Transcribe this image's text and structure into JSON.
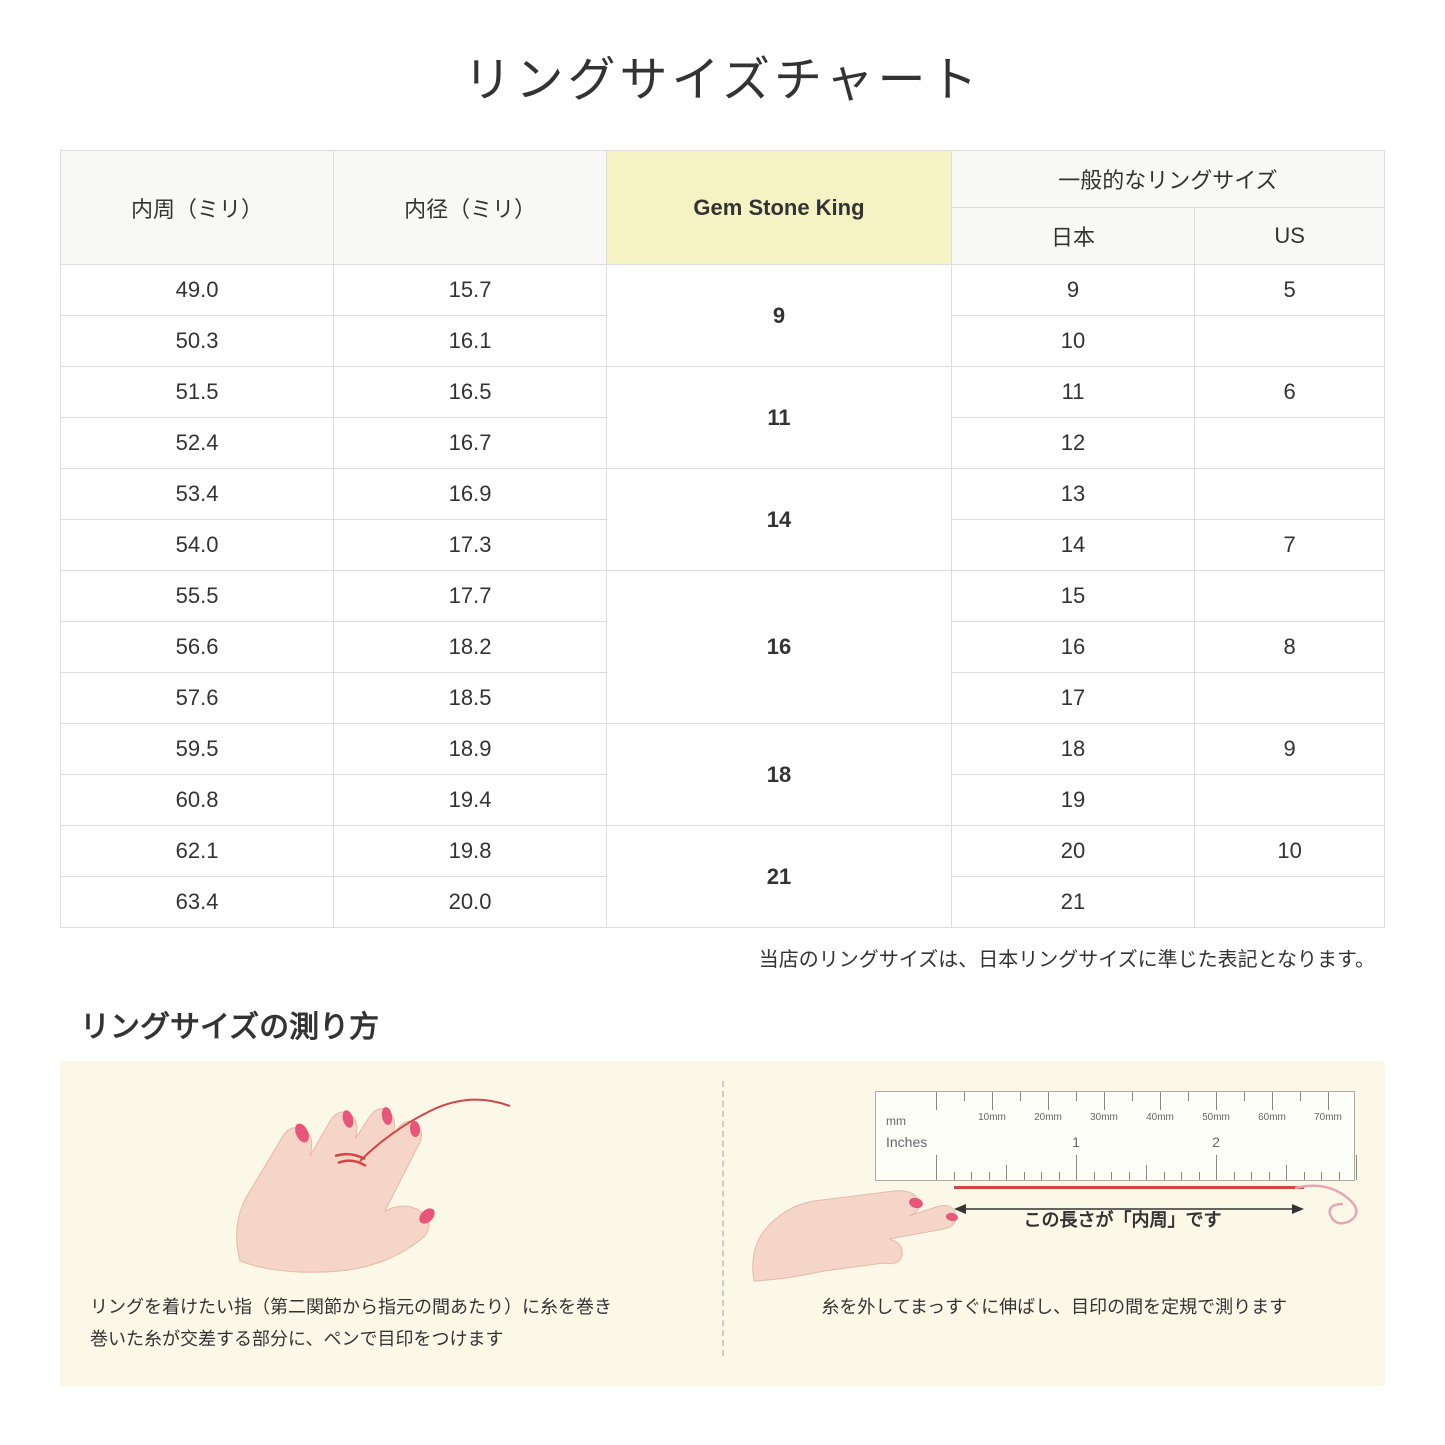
{
  "title": "リングサイズチャート",
  "headers": {
    "circumference": "内周（ミリ）",
    "diameter": "内径（ミリ）",
    "gemstone": "Gem Stone King",
    "general": "一般的なリングサイズ",
    "japan": "日本",
    "us": "US"
  },
  "rows": [
    {
      "circ": "49.0",
      "diam": "15.7",
      "gsk": "9",
      "gskSpan": 2,
      "jp": "9",
      "us": "5"
    },
    {
      "circ": "50.3",
      "diam": "16.1",
      "gsk": "",
      "gskSpan": 0,
      "jp": "10",
      "us": ""
    },
    {
      "circ": "51.5",
      "diam": "16.5",
      "gsk": "11",
      "gskSpan": 2,
      "jp": "11",
      "us": "6"
    },
    {
      "circ": "52.4",
      "diam": "16.7",
      "gsk": "",
      "gskSpan": 0,
      "jp": "12",
      "us": ""
    },
    {
      "circ": "53.4",
      "diam": "16.9",
      "gsk": "14",
      "gskSpan": 2,
      "jp": "13",
      "us": ""
    },
    {
      "circ": "54.0",
      "diam": "17.3",
      "gsk": "",
      "gskSpan": 0,
      "jp": "14",
      "us": "7"
    },
    {
      "circ": "55.5",
      "diam": "17.7",
      "gsk": "16",
      "gskSpan": 3,
      "jp": "15",
      "us": ""
    },
    {
      "circ": "56.6",
      "diam": "18.2",
      "gsk": "",
      "gskSpan": 0,
      "jp": "16",
      "us": "8"
    },
    {
      "circ": "57.6",
      "diam": "18.5",
      "gsk": "",
      "gskSpan": 0,
      "jp": "17",
      "us": ""
    },
    {
      "circ": "59.5",
      "diam": "18.9",
      "gsk": "18",
      "gskSpan": 2,
      "jp": "18",
      "us": "9"
    },
    {
      "circ": "60.8",
      "diam": "19.4",
      "gsk": "",
      "gskSpan": 0,
      "jp": "19",
      "us": ""
    },
    {
      "circ": "62.1",
      "diam": "19.8",
      "gsk": "21",
      "gskSpan": 2,
      "jp": "20",
      "us": "10"
    },
    {
      "circ": "63.4",
      "diam": "20.0",
      "gsk": "",
      "gskSpan": 0,
      "jp": "21",
      "us": ""
    }
  ],
  "note": "当店のリングサイズは、日本リングサイズに準じた表記となります。",
  "subtitle": "リングサイズの測り方",
  "instruction1_line1": "リングを着けたい指（第二関節から指元の間あたり）に糸を巻き",
  "instruction1_line2": "巻いた糸が交差する部分に、ペンで目印をつけます",
  "instruction2": "糸を外してまっすぐに伸ばし、目印の間を定規で測ります",
  "arrow_label": "この長さが「内周」です",
  "ruler": {
    "mm_label": "mm",
    "inches_label": "Inches",
    "mm_ticks": [
      "10mm",
      "20mm",
      "30mm",
      "40mm",
      "50mm",
      "60mm",
      "70mm"
    ],
    "inch_numbers": [
      "1",
      "2"
    ]
  },
  "colors": {
    "highlight_bg": "#f5f2c4",
    "header_bg": "#f8f8f6",
    "instruction_bg": "#fbf8e8",
    "skin": "#f5d5c8",
    "skin_dark": "#e8b8a8",
    "nail": "#e8547a",
    "red_thread": "#d14545"
  }
}
